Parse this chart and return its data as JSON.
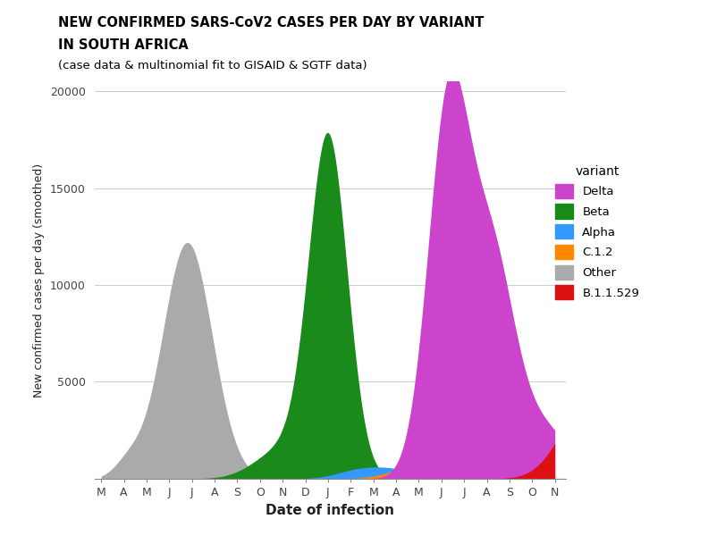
{
  "title_line1": "NEW CONFIRMED SARS-CoV2 CASES PER DAY BY VARIANT",
  "title_line2": "IN SOUTH AFRICA",
  "title_line3": "(case data & multinomial fit to GISAID & SGTF data)",
  "xlabel": "Date of infection",
  "ylabel": "New confirmed cases per day (smoothed)",
  "ylim": [
    0,
    20500
  ],
  "yticks": [
    0,
    5000,
    10000,
    15000,
    20000
  ],
  "months": [
    "M",
    "A",
    "M",
    "J",
    "J",
    "A",
    "S",
    "O",
    "N",
    "D",
    "J",
    "F",
    "M",
    "A",
    "M",
    "J",
    "J",
    "A",
    "S",
    "O",
    "N"
  ],
  "colors": {
    "Other": "#aaaaaa",
    "Beta": "#1a8a1a",
    "Alpha": "#3399ff",
    "C.1.2": "#ff8800",
    "Delta": "#cc44cc",
    "B.1.1.529": "#dd1111"
  },
  "legend_order": [
    "Delta",
    "Beta",
    "Alpha",
    "C.1.2",
    "Other",
    "B.1.1.529"
  ],
  "background_color": "#ffffff"
}
